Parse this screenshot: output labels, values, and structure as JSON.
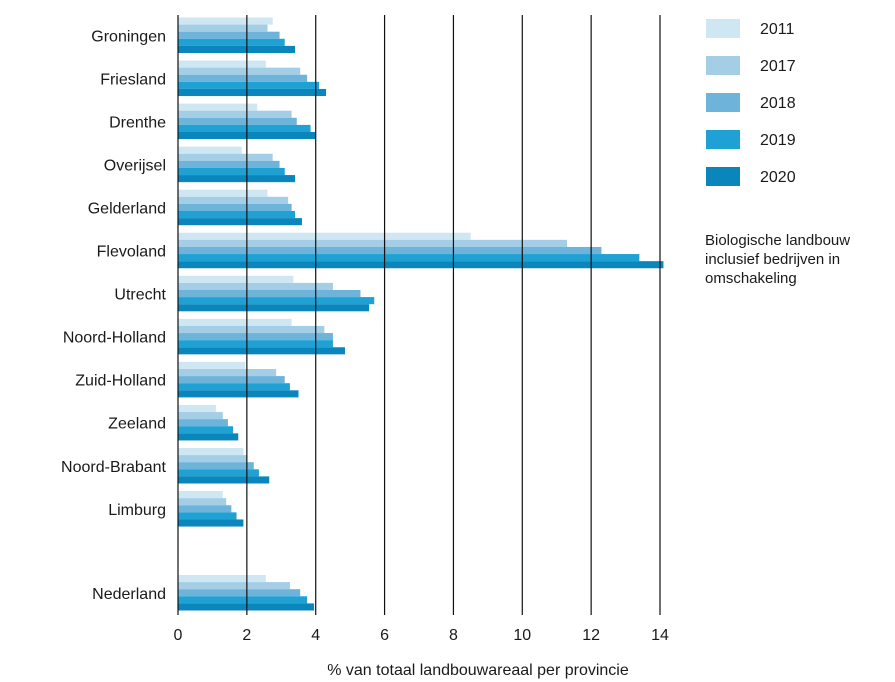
{
  "chart_data": {
    "type": "bar",
    "orientation": "horizontal",
    "xlabel": "% van totaal landbouwareaal per provincie",
    "xlim": [
      0,
      14
    ],
    "xticks": [
      0,
      2,
      4,
      6,
      8,
      10,
      12,
      14
    ],
    "grid": true,
    "legend_position": "top-right",
    "note": [
      "Biologische landbouw",
      "inclusief bedrijven in",
      "omschakeling"
    ],
    "categories": [
      "Groningen",
      "Friesland",
      "Drenthe",
      "Overijsel",
      "Gelderland",
      "Flevoland",
      "Utrecht",
      "Noord-Holland",
      "Zuid-Holland",
      "Zeeland",
      "Noord-Brabant",
      "Limburg",
      "Nederland"
    ],
    "series": [
      {
        "name": "2011",
        "color": "#cfe6f3",
        "values": [
          2.75,
          2.55,
          2.3,
          1.85,
          2.6,
          8.5,
          3.35,
          3.3,
          1.95,
          1.1,
          1.9,
          1.3,
          2.55
        ]
      },
      {
        "name": "2017",
        "color": "#a4cde6",
        "values": [
          2.6,
          3.55,
          3.3,
          2.75,
          3.2,
          11.3,
          4.5,
          4.25,
          2.85,
          1.3,
          2.0,
          1.4,
          3.25
        ]
      },
      {
        "name": "2018",
        "color": "#6db3da",
        "values": [
          2.95,
          3.75,
          3.45,
          2.95,
          3.3,
          12.3,
          5.3,
          4.5,
          3.1,
          1.45,
          2.2,
          1.55,
          3.55
        ]
      },
      {
        "name": "2019",
        "color": "#1fa1d4",
        "values": [
          3.1,
          4.1,
          3.85,
          3.1,
          3.4,
          13.4,
          5.7,
          4.5,
          3.25,
          1.6,
          2.35,
          1.7,
          3.75
        ]
      },
      {
        "name": "2020",
        "color": "#0b86bc",
        "values": [
          3.4,
          4.3,
          4.0,
          3.4,
          3.6,
          14.1,
          5.55,
          4.85,
          3.5,
          1.75,
          2.65,
          1.9,
          3.95
        ]
      }
    ]
  }
}
